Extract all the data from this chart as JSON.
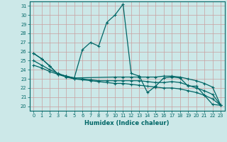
{
  "xlabel": "Humidex (Indice chaleur)",
  "bg_color": "#cce8e8",
  "grid_color": "#b0d4d4",
  "line_color": "#006666",
  "xlim": [
    -0.5,
    23.5
  ],
  "ylim": [
    19.5,
    31.5
  ],
  "xticks": [
    0,
    1,
    2,
    3,
    4,
    5,
    6,
    7,
    8,
    9,
    10,
    11,
    12,
    13,
    14,
    15,
    16,
    17,
    18,
    19,
    20,
    21,
    22,
    23
  ],
  "yticks": [
    20,
    21,
    22,
    23,
    24,
    25,
    26,
    27,
    28,
    29,
    30,
    31
  ],
  "line1": {
    "x": [
      0,
      1,
      2,
      3,
      4,
      5,
      6,
      7,
      8,
      9,
      10,
      11,
      12,
      13,
      14,
      15,
      16,
      17,
      18,
      19,
      20,
      21,
      22,
      23
    ],
    "y": [
      25.8,
      25.2,
      24.4,
      23.5,
      23.3,
      23.1,
      26.2,
      27.0,
      26.6,
      29.2,
      30.0,
      31.2,
      23.6,
      23.3,
      21.5,
      22.2,
      23.1,
      23.2,
      23.1,
      22.2,
      22.2,
      21.2,
      20.2,
      20.1
    ]
  },
  "line2": {
    "x": [
      0,
      1,
      2,
      3,
      4,
      5,
      10,
      11,
      12,
      13,
      14,
      15,
      16,
      17,
      18,
      19,
      20,
      21,
      22,
      23
    ],
    "y": [
      25.8,
      25.2,
      24.4,
      23.5,
      23.3,
      23.1,
      23.2,
      23.2,
      23.2,
      23.2,
      23.2,
      23.2,
      23.3,
      23.3,
      23.2,
      23.0,
      22.8,
      22.5,
      22.1,
      20.1
    ]
  },
  "line3": {
    "x": [
      0,
      1,
      2,
      3,
      4,
      5,
      6,
      7,
      8,
      9,
      10,
      11,
      12,
      13,
      14,
      15,
      16,
      17,
      18,
      19,
      20,
      21,
      22,
      23
    ],
    "y": [
      24.5,
      24.2,
      23.8,
      23.5,
      23.2,
      23.0,
      23.0,
      22.9,
      22.8,
      22.8,
      22.8,
      22.8,
      22.8,
      22.8,
      22.7,
      22.6,
      22.6,
      22.7,
      22.6,
      22.3,
      22.0,
      21.7,
      21.3,
      20.1
    ]
  },
  "line4": {
    "x": [
      0,
      1,
      2,
      3,
      4,
      5,
      6,
      7,
      8,
      9,
      10,
      11,
      12,
      13,
      14,
      15,
      16,
      17,
      18,
      19,
      20,
      21,
      22,
      23
    ],
    "y": [
      25.0,
      24.5,
      24.0,
      23.6,
      23.3,
      23.0,
      22.9,
      22.8,
      22.7,
      22.6,
      22.5,
      22.5,
      22.4,
      22.3,
      22.2,
      22.1,
      22.0,
      22.0,
      21.9,
      21.7,
      21.5,
      21.2,
      20.8,
      20.1
    ]
  }
}
